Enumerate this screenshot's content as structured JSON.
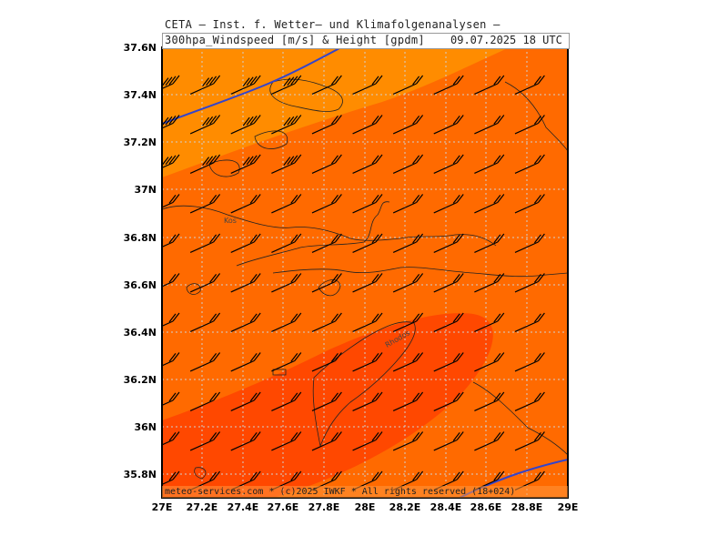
{
  "header": {
    "line1": "CETA — Inst. f. Wetter— und Klimafolgenanalysen —",
    "line2": "300hpa_Windspeed [m/s] & Height [gpdm]",
    "date": "09.07.2025 18 UTC"
  },
  "footer": {
    "credit": "meteo-services.com * (c)2025 IWKF * All rights reserved (18+024)"
  },
  "axes": {
    "y_labels": [
      "37.6N",
      "37.4N",
      "37.2N",
      "37N",
      "36.8N",
      "36.6N",
      "36.4N",
      "36.2N",
      "36N",
      "35.8N"
    ],
    "x_labels": [
      "27E",
      "27.2E",
      "27.4E",
      "27.6E",
      "27.8E",
      "28E",
      "28.2E",
      "28.4E",
      "28.6E",
      "28.8E",
      "29E"
    ],
    "lon_range": [
      27,
      29
    ],
    "lat_range": [
      35.7,
      37.6
    ]
  },
  "places": {
    "kos": "Kos",
    "rhodos": "Rhodos"
  },
  "colors": {
    "band_light": "#ff8c00",
    "band_mid": "#ff6a00",
    "band_strong": "#ff4800",
    "contour": "#3344cc",
    "grid": "#c8c8c8",
    "barb": "#000000"
  }
}
